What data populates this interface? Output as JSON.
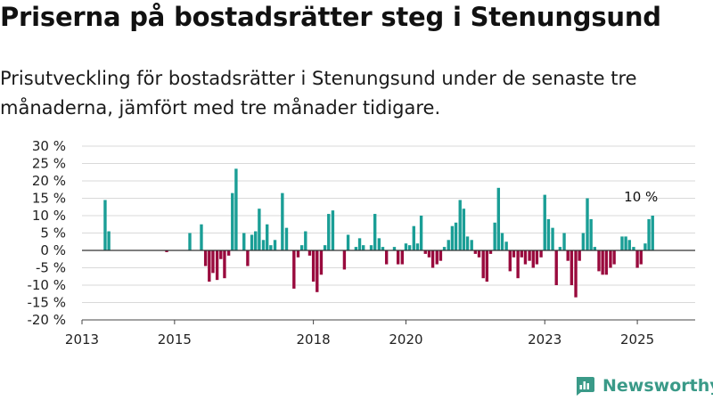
{
  "header": {
    "title": "Priserna på bostadsrätter steg i Stenungsund",
    "subtitle": "Prisutveckling för bostadsrätter i Stenungsund under de senaste tre månaderna, jämfört med tre månader tidigare."
  },
  "brand": {
    "name": "Newsworthy",
    "icon": "newsworthy-logo-icon"
  },
  "colors": {
    "positive": "#1a9e96",
    "negative": "#990a3d",
    "zero_line": "#333333",
    "grid": "#d9d9d9",
    "brand": "#3a9a88"
  },
  "chart_data": {
    "type": "bar",
    "title": "",
    "xlabel": "",
    "ylabel": "",
    "y_ticks": [
      "30 %",
      "25 %",
      "20 %",
      "15 %",
      "10 %",
      "5 %",
      "0 %",
      "-5 %",
      "-10 %",
      "-15 %",
      "-20 %"
    ],
    "ylim": [
      -20,
      30
    ],
    "x_ticks": [
      {
        "label": "2013",
        "value": 2013.0
      },
      {
        "label": "2015",
        "value": 2015.0
      },
      {
        "label": "2018",
        "value": 2018.0
      },
      {
        "label": "2020",
        "value": 2020.0
      },
      {
        "label": "2023",
        "value": 2023.0
      },
      {
        "label": "2025",
        "value": 2025.0
      }
    ],
    "xlim": [
      2013.0,
      2026.25
    ],
    "grid": true,
    "annotation": {
      "text": "10 %",
      "x": 2025.33,
      "y": 10
    },
    "series": [
      {
        "x": [
          2013.08,
          2013.17,
          2013.25,
          2013.33,
          2013.42,
          2013.5,
          2013.58,
          2013.67,
          2013.75,
          2013.83,
          2013.92,
          2014.0,
          2014.08,
          2014.17,
          2014.25,
          2014.33,
          2014.42,
          2014.5,
          2014.58,
          2014.67,
          2014.75,
          2014.83,
          2014.92,
          2015.0,
          2015.08,
          2015.17,
          2015.25,
          2015.33,
          2015.42,
          2015.5,
          2015.58,
          2015.67,
          2015.75,
          2015.83,
          2015.92,
          2016.0,
          2016.08,
          2016.17,
          2016.25,
          2016.33,
          2016.42,
          2016.5,
          2016.58,
          2016.67,
          2016.75,
          2016.83,
          2016.92,
          2017.0,
          2017.08,
          2017.17,
          2017.25,
          2017.33,
          2017.42,
          2017.5,
          2017.58,
          2017.67,
          2017.75,
          2017.83,
          2017.92,
          2018.0,
          2018.08,
          2018.17,
          2018.25,
          2018.33,
          2018.42,
          2018.5,
          2018.58,
          2018.67,
          2018.75,
          2018.83,
          2018.92,
          2019.0,
          2019.08,
          2019.17,
          2019.25,
          2019.33,
          2019.42,
          2019.5,
          2019.58,
          2019.67,
          2019.75,
          2019.83,
          2019.92,
          2020.0,
          2020.08,
          2020.17,
          2020.25,
          2020.33,
          2020.42,
          2020.5,
          2020.58,
          2020.67,
          2020.75,
          2020.83,
          2020.92,
          2021.0,
          2021.08,
          2021.17,
          2021.25,
          2021.33,
          2021.42,
          2021.5,
          2021.58,
          2021.67,
          2021.75,
          2021.83,
          2021.92,
          2022.0,
          2022.08,
          2022.17,
          2022.25,
          2022.33,
          2022.42,
          2022.5,
          2022.58,
          2022.67,
          2022.75,
          2022.83,
          2022.92,
          2023.0,
          2023.08,
          2023.17,
          2023.25,
          2023.33,
          2023.42,
          2023.5,
          2023.58,
          2023.67,
          2023.75,
          2023.83,
          2023.92,
          2024.0,
          2024.08,
          2024.17,
          2024.25,
          2024.33,
          2024.42,
          2024.5,
          2024.58,
          2024.67,
          2024.75,
          2024.83,
          2024.92,
          2025.0,
          2025.08,
          2025.17,
          2025.25,
          2025.33
        ],
        "values": [
          0,
          0,
          0,
          0,
          0,
          14.5,
          5.5,
          0,
          0,
          0,
          0,
          0,
          0,
          0,
          0,
          0,
          0,
          0,
          0,
          0,
          0,
          -0.5,
          0,
          0,
          0,
          0,
          0,
          5,
          0,
          0,
          7.5,
          -4.5,
          -9,
          -6.5,
          -8.5,
          -2.5,
          -8,
          -1.5,
          16.5,
          23.5,
          0,
          5,
          -4.5,
          4.5,
          5.5,
          12,
          3,
          7.5,
          1.5,
          3,
          0,
          16.5,
          6.5,
          0,
          -11,
          -2,
          1.5,
          5.5,
          -1.5,
          -9,
          -12,
          -7,
          1.5,
          10.5,
          11.5,
          0,
          0,
          -5.5,
          4.5,
          0,
          1,
          3.5,
          1.5,
          0,
          1.5,
          10.5,
          3.5,
          1,
          -4,
          0,
          1,
          -4,
          -4,
          2,
          1.5,
          7,
          2,
          10,
          -1,
          -2,
          -5,
          -4,
          -3,
          1,
          3,
          7,
          8,
          14.5,
          12,
          4,
          3,
          -1,
          -2,
          -8,
          -9,
          -1,
          8,
          18,
          5,
          2.5,
          -6,
          -2,
          -8,
          -2,
          -4,
          -3,
          -5,
          -4,
          -2,
          16,
          9,
          6.5,
          -10,
          1,
          5,
          -3,
          -10,
          -13.5,
          -3,
          5,
          15,
          9,
          1,
          -6,
          -7,
          -7,
          -5,
          -4,
          0,
          4,
          4,
          3,
          1,
          -5,
          -4,
          2,
          9,
          10
        ]
      }
    ]
  }
}
